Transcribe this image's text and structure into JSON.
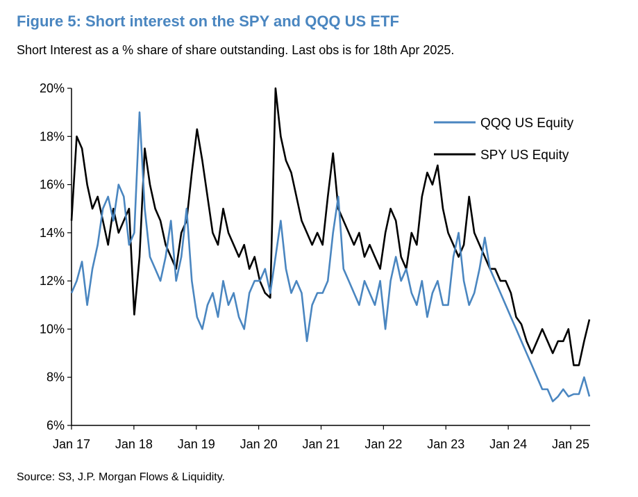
{
  "title": "Figure 5: Short interest on the SPY and QQQ US ETF",
  "subtitle": "Short Interest as a % share of share outstanding. Last obs is for 18th Apr 2025.",
  "source": "Source: S3, J.P. Morgan Flows & Liquidity.",
  "chart_data": {
    "type": "line",
    "title": "Figure 5: Short interest on the SPY and QQQ US ETF",
    "ylim": [
      6,
      20
    ],
    "yticks": [
      6,
      8,
      10,
      12,
      14,
      16,
      18,
      20
    ],
    "ytick_labels": [
      "6%",
      "8%",
      "10%",
      "12%",
      "14%",
      "16%",
      "18%",
      "20%"
    ],
    "xtick_labels": [
      "Jan 17",
      "Jan 18",
      "Jan 19",
      "Jan 20",
      "Jan 21",
      "Jan 22",
      "Jan 23",
      "Jan 24",
      "Jan 25"
    ],
    "xtick_dates": [
      "2017-01",
      "2018-01",
      "2019-01",
      "2020-01",
      "2021-01",
      "2022-01",
      "2023-01",
      "2024-01",
      "2025-01"
    ],
    "x_start": "2017-01",
    "x_end": "2025-04",
    "grid": false,
    "legend_placement": "top-right",
    "series": [
      {
        "name": "SPY US Equity",
        "color": "#000000",
        "values": [
          14.5,
          18,
          17.5,
          16,
          15,
          15.5,
          14.5,
          13.5,
          15,
          14,
          14.5,
          15,
          10.6,
          13,
          17.5,
          16,
          15,
          14.5,
          13.5,
          13,
          12.5,
          14,
          14.5,
          16.5,
          18.3,
          17,
          15.5,
          14,
          13.5,
          15,
          14,
          13.5,
          13,
          13.5,
          12.5,
          13,
          12,
          11.5,
          11.3,
          20,
          18,
          17,
          16.5,
          15.5,
          14.5,
          14,
          13.5,
          14,
          13.5,
          15.5,
          17.3,
          15,
          14.5,
          14,
          13.5,
          14,
          13,
          13.5,
          13,
          12.5,
          14,
          15,
          14.5,
          13,
          12.5,
          14,
          13.5,
          15.5,
          16.5,
          16,
          16.8,
          15,
          14,
          13.5,
          13,
          13.5,
          15.5,
          14,
          13.5,
          13,
          12.5,
          12.5,
          12,
          12,
          11.5,
          10.5,
          10.2,
          9.5,
          9,
          9.5,
          10,
          9.5,
          9,
          9.5,
          9.5,
          10,
          8.5,
          8.5,
          9.5,
          10.4
        ]
      },
      {
        "name": "QQQ US Equity",
        "color": "#4a86c0",
        "values": [
          11.5,
          12,
          12.8,
          11,
          12.5,
          13.5,
          15,
          15.5,
          14.5,
          16,
          15.5,
          13.5,
          14,
          19,
          15,
          13,
          12.5,
          12,
          13,
          14.5,
          12,
          13,
          15,
          12,
          10.5,
          10,
          11,
          11.5,
          10.5,
          12,
          11,
          11.5,
          10.5,
          10,
          11.5,
          12,
          12,
          12.5,
          11.5,
          13,
          14.5,
          12.5,
          11.5,
          12,
          11.5,
          9.5,
          11,
          11.5,
          11.5,
          12,
          14,
          15.5,
          12.5,
          12,
          11.5,
          11,
          12,
          11.5,
          11,
          12,
          10,
          12,
          13,
          12,
          12.5,
          11.5,
          11,
          12,
          10.5,
          11.5,
          12,
          11,
          11,
          13,
          14,
          12,
          11,
          11.5,
          12.5,
          13.8,
          12.5,
          12,
          11.5,
          11,
          10.5,
          10,
          9.5,
          9,
          8.5,
          8,
          7.5,
          7.5,
          7,
          7.2,
          7.5,
          7.2,
          7.3,
          7.3,
          8,
          7.2
        ]
      }
    ]
  }
}
